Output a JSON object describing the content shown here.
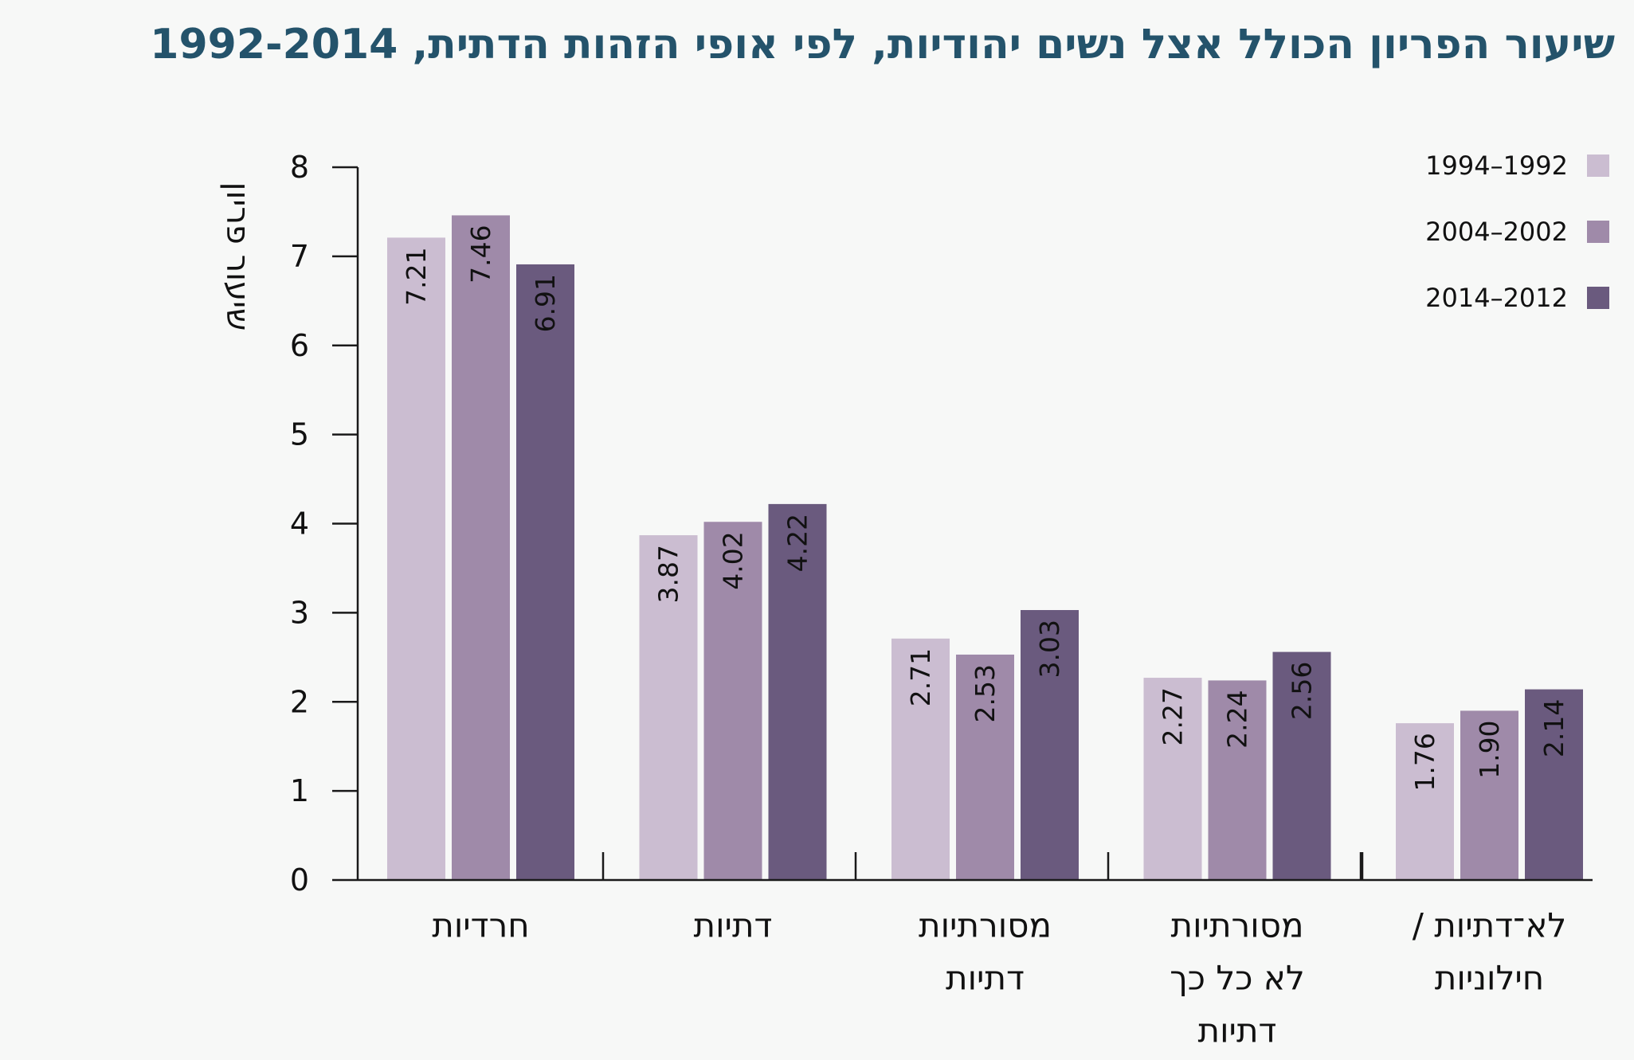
{
  "chart_data": {
    "type": "bar",
    "title": "שיעור הפריון הכולל אצל נשים יהודיות, לפי אופי הזהות הדתית, 1992-2014",
    "ylabel": "שיעור פריון",
    "xlabel": "",
    "ylim": [
      0,
      8
    ],
    "yticks": [
      "0",
      "1",
      "2",
      "3",
      "4",
      "5",
      "6",
      "7",
      "8"
    ],
    "grid": false,
    "legend_position": "top-right",
    "categories": [
      [
        "חרדיות"
      ],
      [
        "דתיות"
      ],
      [
        "מסורתיות",
        "דתיות"
      ],
      [
        "מסורתיות",
        "לא כל כך",
        "דתיות"
      ],
      [
        "לא־דתיות /",
        "חילוניות"
      ]
    ],
    "series": [
      {
        "name": "1994–1992",
        "color": "#cbbdd1",
        "values": [
          7.21,
          3.87,
          2.71,
          2.27,
          1.76
        ],
        "labels": [
          "7.21",
          "3.87",
          "2.71",
          "2.27",
          "1.76"
        ]
      },
      {
        "name": "2004–2002",
        "color": "#9f8aa9",
        "values": [
          7.46,
          4.02,
          2.53,
          2.24,
          1.9
        ],
        "labels": [
          "7.46",
          "4.02",
          "2.53",
          "2.24",
          "1.90"
        ]
      },
      {
        "name": "2014–2012",
        "color": "#6a5a7e",
        "values": [
          6.91,
          4.22,
          3.03,
          2.56,
          2.14
        ],
        "labels": [
          "6.91",
          "4.22",
          "3.03",
          "2.56",
          "2.14"
        ]
      }
    ]
  }
}
